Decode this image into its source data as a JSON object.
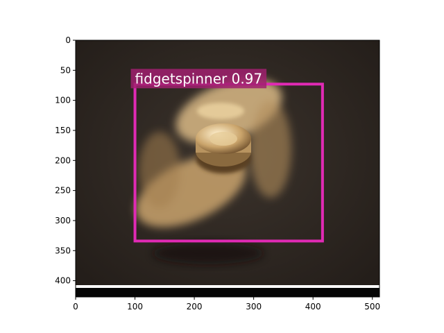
{
  "figure": {
    "image_extent": {
      "x": [
        0,
        512
      ],
      "y": [
        0,
        427
      ]
    },
    "xticks": [
      0,
      100,
      200,
      300,
      400,
      500
    ],
    "yticks": [
      0,
      50,
      100,
      150,
      200,
      250,
      300,
      350,
      400
    ]
  },
  "detection": {
    "label": "fidgetspinner",
    "score": "0.97",
    "label_text": "fidgetspinner 0.97",
    "box": {
      "x1": 100,
      "y1": 73,
      "x2": 416,
      "y2": 334
    },
    "box_color": "#e02ab4",
    "label_bg_color": "#a0206e"
  },
  "photo": {
    "subject": "fidget spinner",
    "background_color": "#2e2722",
    "object_color": "#d8b480"
  }
}
